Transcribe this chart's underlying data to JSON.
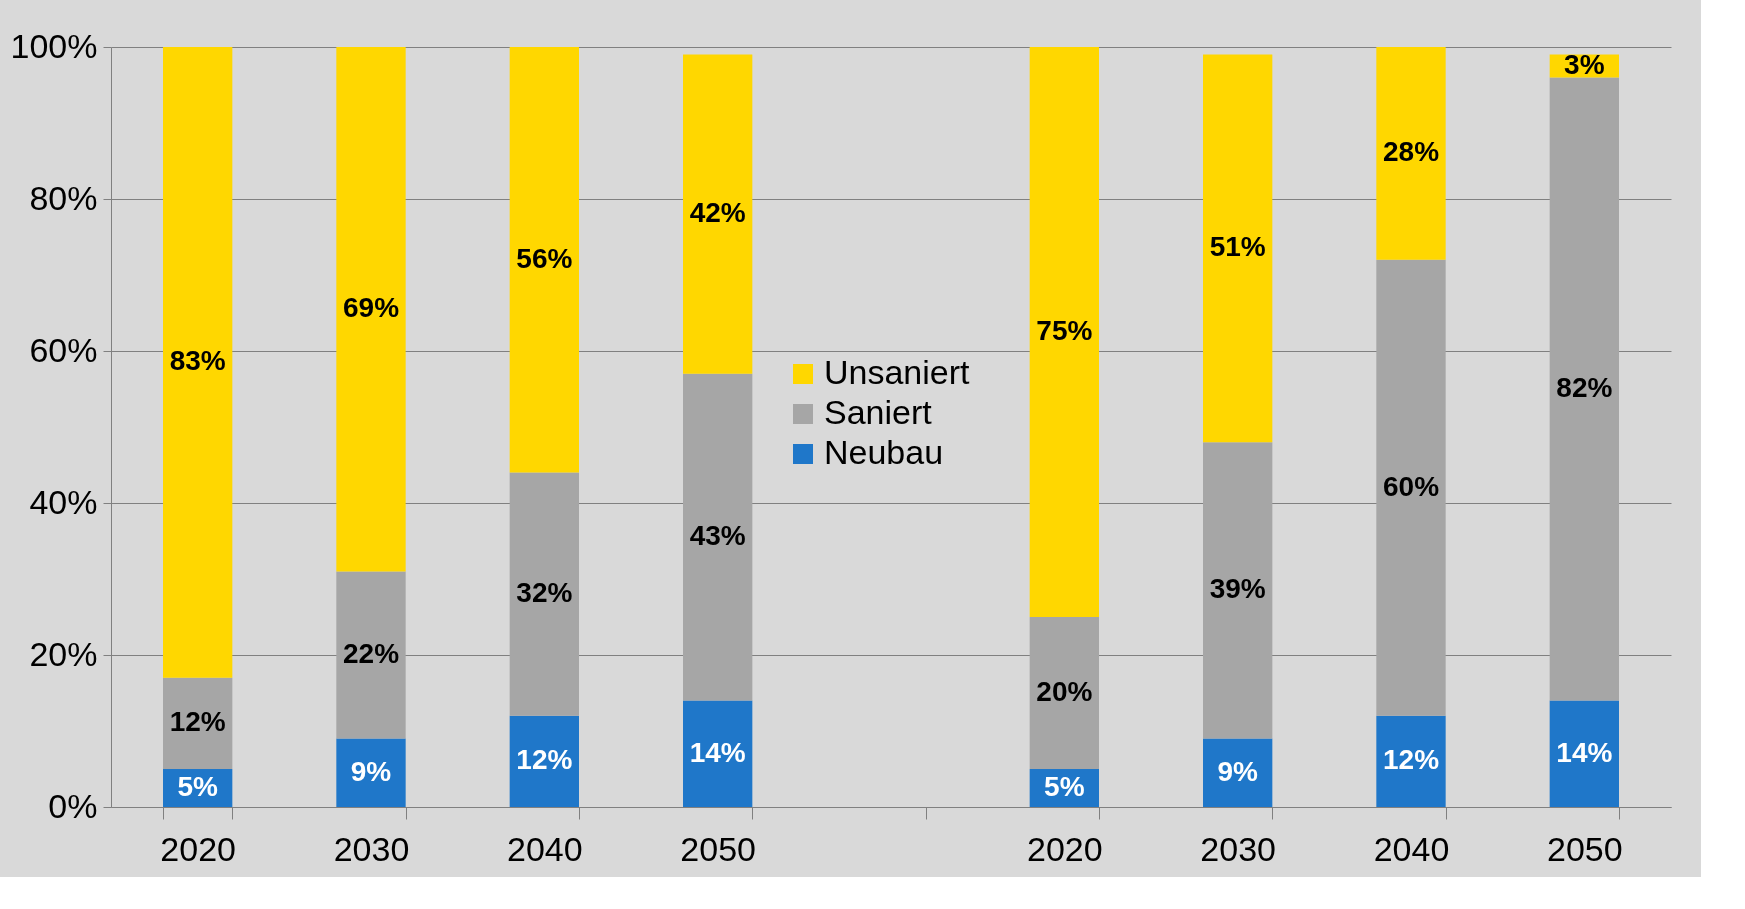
{
  "chart_data": {
    "type": "bar",
    "stacked": true,
    "categories": [
      "2020",
      "2030",
      "2040",
      "2050",
      null,
      "2020",
      "2030",
      "2040",
      "2050"
    ],
    "series": [
      {
        "name": "Neubau",
        "color": "#1f77c9",
        "values": [
          5,
          9,
          12,
          14,
          null,
          5,
          9,
          12,
          14
        ],
        "value_labels": [
          "5%",
          "9%",
          "12%",
          "14%",
          null,
          "5%",
          "9%",
          "12%",
          "14%"
        ]
      },
      {
        "name": "Saniert",
        "color": "#a6a6a6",
        "values": [
          12,
          22,
          32,
          43,
          null,
          20,
          39,
          60,
          82
        ],
        "value_labels": [
          "12%",
          "22%",
          "32%",
          "43%",
          null,
          "20%",
          "39%",
          "60%",
          "82%"
        ]
      },
      {
        "name": "Unsaniert",
        "color": "#ffd700",
        "values": [
          83,
          69,
          56,
          42,
          null,
          75,
          51,
          28,
          3
        ],
        "value_labels": [
          "83%",
          "69%",
          "56%",
          "42%",
          null,
          "75%",
          "51%",
          "28%",
          "3%"
        ]
      }
    ],
    "ylim": [
      0,
      100
    ],
    "yticks": [
      {
        "value": 0,
        "label": "0%"
      },
      {
        "value": 20,
        "label": "20%"
      },
      {
        "value": 40,
        "label": "40%"
      },
      {
        "value": 60,
        "label": "60%"
      },
      {
        "value": 80,
        "label": "80%"
      },
      {
        "value": 100,
        "label": "100%"
      }
    ],
    "grid": "y",
    "legend": "center"
  }
}
